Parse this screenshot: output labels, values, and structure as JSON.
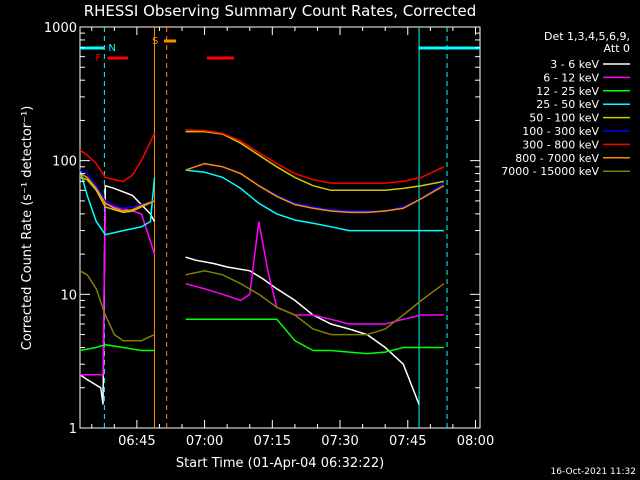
{
  "chart_data": {
    "type": "line",
    "title": "RHESSI Observing Summary Count Rates, Corrected",
    "xlabel": "Start Time (01-Apr-04 06:32:22)",
    "ylabel": "Corrected Count Rate (s⁻¹ detector⁻¹)",
    "yscale": "log",
    "ylim": [
      1,
      1000
    ],
    "xlim_minutes_of_day": [
      392.4,
      481.0
    ],
    "x_ticks": [
      "06:45",
      "07:00",
      "07:15",
      "07:30",
      "07:45",
      "08:00"
    ],
    "x_tick_minutes": [
      405,
      420,
      435,
      450,
      465,
      480
    ],
    "y_ticks": [
      "1",
      "10",
      "100",
      "1000"
    ],
    "y_tick_values": [
      1,
      10,
      100,
      1000
    ],
    "timestamp": "16-Oct-2021 11:32",
    "legend": {
      "header_line1": "Det 1,3,4,5,6,9,",
      "header_line2": "Att 0",
      "placement": "right-outside"
    },
    "flags": [
      {
        "label": "F",
        "color": "#ff0000",
        "segments": [
          [
            398.5,
            403.0
          ],
          [
            420.5,
            426.5
          ]
        ]
      },
      {
        "label": "N",
        "color": "#00ffff",
        "segments": [
          [
            392.4,
            397.8
          ],
          [
            467.5,
            481.0
          ]
        ]
      },
      {
        "label": "S",
        "color": "#ff8c00",
        "segments": [
          [
            411.0,
            413.7
          ]
        ]
      }
    ],
    "flag_labels": [
      "F",
      "N",
      "S"
    ],
    "vlines": [
      {
        "minute": 397.8,
        "color": "#00ffff",
        "style": "dashed"
      },
      {
        "minute": 408.9,
        "color": "#ff8c00",
        "style": "solid"
      },
      {
        "minute": 411.6,
        "color": "#ff8c00",
        "style": "dashed"
      },
      {
        "minute": 467.5,
        "color": "#00ffff",
        "style": "solid"
      },
      {
        "minute": 473.7,
        "color": "#00ffff",
        "style": "dashed"
      }
    ],
    "gaps": [
      [
        409.0,
        415.8
      ]
    ],
    "series": [
      {
        "name": "3 - 6 keV",
        "color": "#ffffff",
        "x": [
          392.4,
          394,
          397,
          397.5,
          398,
          400,
          404,
          408,
          408.9,
          415.8,
          418,
          422,
          425,
          430,
          433,
          436,
          440,
          444,
          448,
          452,
          456,
          460,
          464,
          467.5
        ],
        "y": [
          2.5,
          2.3,
          2.0,
          1.5,
          65,
          62,
          55,
          40,
          35,
          19,
          18,
          17,
          16,
          15,
          13,
          11,
          9,
          7,
          6,
          5.5,
          5,
          4,
          3,
          1.5
        ]
      },
      {
        "name": "6 - 12 keV",
        "color": "#ff00ff",
        "x": [
          392.4,
          396,
          397.5,
          398,
          400,
          404,
          406,
          408,
          408.9,
          415.8,
          420,
          424,
          428,
          430,
          432,
          434,
          436,
          440,
          444,
          448,
          452,
          456,
          460,
          464,
          468,
          473
        ],
        "y": [
          2.5,
          2.5,
          2.5,
          48,
          45,
          42,
          40,
          25,
          20,
          12,
          11,
          10,
          9,
          10,
          35,
          15,
          8,
          7,
          7,
          6.5,
          6,
          6,
          6,
          6.5,
          7,
          7
        ]
      },
      {
        "name": "12 - 25 keV",
        "color": "#00ff00",
        "x": [
          392.4,
          396,
          398,
          402,
          406,
          408.9,
          415.8,
          420,
          424,
          428,
          432,
          436,
          440,
          444,
          448,
          452,
          456,
          460,
          464,
          468,
          473
        ],
        "y": [
          3.8,
          4.0,
          4.2,
          4.0,
          3.8,
          3.8,
          6.5,
          6.5,
          6.5,
          6.5,
          6.5,
          6.5,
          4.5,
          3.8,
          3.8,
          3.7,
          3.6,
          3.7,
          4.0,
          4.0,
          4.0
        ]
      },
      {
        "name": "25 - 50 keV",
        "color": "#00ffff",
        "x": [
          392.4,
          394,
          396,
          398,
          402,
          406,
          408,
          408.9,
          415.8,
          420,
          424,
          428,
          432,
          436,
          440,
          444,
          448,
          452,
          456,
          460,
          464,
          468,
          473
        ],
        "y": [
          85,
          55,
          35,
          28,
          30,
          32,
          35,
          75,
          85,
          82,
          75,
          62,
          48,
          40,
          36,
          34,
          32,
          30,
          30,
          30,
          30,
          30,
          30
        ]
      },
      {
        "name": "50 - 100 keV",
        "color": "#cccc00",
        "x": [
          392.4,
          394,
          396,
          398,
          400,
          402,
          404,
          406,
          408.9,
          415.8,
          420,
          424,
          428,
          432,
          436,
          440,
          444,
          448,
          452,
          456,
          460,
          464,
          468,
          473
        ],
        "y": [
          75,
          72,
          60,
          45,
          43,
          41,
          42,
          45,
          50,
          165,
          165,
          158,
          135,
          110,
          90,
          75,
          65,
          60,
          60,
          60,
          60,
          62,
          65,
          70
        ]
      },
      {
        "name": "100 - 300 keV",
        "color": "#0000ff",
        "x": [
          392.4,
          394,
          396,
          398,
          400,
          402,
          404,
          406,
          408.9,
          415.8,
          420,
          424,
          428,
          432,
          436,
          440,
          444,
          448,
          452,
          456,
          460,
          464,
          468,
          473
        ],
        "y": [
          85,
          80,
          65,
          50,
          46,
          44,
          45,
          47,
          50,
          85,
          95,
          90,
          80,
          65,
          55,
          48,
          45,
          43,
          42,
          42,
          42,
          45,
          52,
          68
        ]
      },
      {
        "name": "300 - 800 keV",
        "color": "#ff0000",
        "x": [
          392.4,
          394,
          396,
          398,
          400,
          402,
          404,
          406,
          408.9,
          415.8,
          420,
          424,
          428,
          432,
          436,
          440,
          444,
          448,
          452,
          456,
          460,
          464,
          468,
          473
        ],
        "y": [
          120,
          110,
          95,
          75,
          72,
          70,
          78,
          100,
          160,
          170,
          168,
          160,
          140,
          115,
          95,
          80,
          72,
          68,
          68,
          68,
          68,
          70,
          75,
          90
        ]
      },
      {
        "name": "800 - 7000 keV",
        "color": "#ff8c00",
        "x": [
          392.4,
          394,
          396,
          398,
          400,
          402,
          404,
          406,
          408.9,
          415.8,
          420,
          424,
          428,
          432,
          436,
          440,
          444,
          448,
          452,
          456,
          460,
          464,
          468,
          473
        ],
        "y": [
          80,
          75,
          62,
          48,
          44,
          42,
          43,
          46,
          50,
          85,
          95,
          90,
          80,
          65,
          54,
          47,
          44,
          42,
          41,
          41,
          42,
          44,
          52,
          65
        ]
      },
      {
        "name": "7000 - 15000 keV",
        "color": "#808000",
        "x": [
          392.4,
          394,
          396,
          398,
          400,
          402,
          404,
          406,
          408.9,
          415.8,
          420,
          424,
          428,
          432,
          436,
          440,
          444,
          448,
          452,
          456,
          460,
          464,
          468,
          473
        ],
        "y": [
          15,
          14,
          11,
          7,
          5,
          4.5,
          4.5,
          4.5,
          5,
          14,
          15,
          14,
          12,
          10,
          8,
          7,
          5.5,
          5,
          5,
          5,
          5.5,
          7,
          9,
          12
        ]
      }
    ]
  }
}
